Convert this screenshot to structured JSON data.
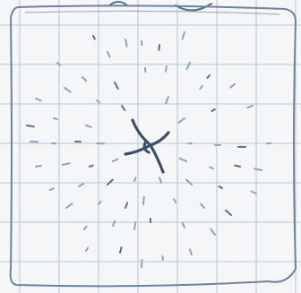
{
  "image": {
    "kind": "hand-drawn sketch on graph paper",
    "icon": "vortex-icon"
  },
  "colors": {
    "paper": "#f4f6f8",
    "grid": "#b9c6d6",
    "ink": "#5a6f8a",
    "ink_dark": "#3c4f6b",
    "ink_light": "#8fa3ba"
  }
}
